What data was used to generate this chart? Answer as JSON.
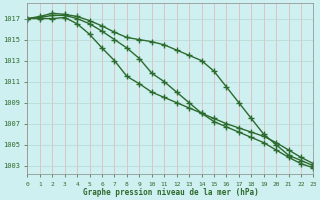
{
  "x": [
    0,
    1,
    2,
    3,
    4,
    5,
    6,
    7,
    8,
    9,
    10,
    11,
    12,
    13,
    14,
    15,
    16,
    17,
    18,
    19,
    20,
    21,
    22,
    23
  ],
  "series1": [
    1017.0,
    1017.2,
    1017.5,
    1017.4,
    1017.2,
    1016.8,
    1016.3,
    1015.7,
    1015.2,
    1015.0,
    1014.8,
    1014.5,
    1014.0,
    1013.5,
    1013.0,
    1012.0,
    1010.5,
    1009.0,
    1007.5,
    1006.0,
    1005.0,
    1004.0,
    1003.5,
    1003.0
  ],
  "series2": [
    1017.0,
    1017.1,
    1017.3,
    1017.3,
    1017.0,
    1016.5,
    1015.8,
    1015.0,
    1014.2,
    1013.2,
    1011.8,
    1011.0,
    1010.0,
    1009.0,
    1008.0,
    1007.2,
    1006.7,
    1006.2,
    1005.7,
    1005.2,
    1004.5,
    1003.8,
    1003.2,
    1002.8
  ],
  "series3": [
    1017.0,
    1017.0,
    1017.0,
    1017.1,
    1016.5,
    1015.5,
    1014.2,
    1013.0,
    1011.5,
    1010.8,
    1010.0,
    1009.5,
    1009.0,
    1008.5,
    1008.0,
    1007.5,
    1007.0,
    1006.6,
    1006.2,
    1005.8,
    1005.2,
    1004.5,
    1003.8,
    1003.2
  ],
  "yticks": [
    1003,
    1005,
    1007,
    1009,
    1011,
    1013,
    1015,
    1017
  ],
  "xticks": [
    0,
    1,
    2,
    3,
    4,
    5,
    6,
    7,
    8,
    9,
    10,
    11,
    12,
    13,
    14,
    15,
    16,
    17,
    18,
    19,
    20,
    21,
    22,
    23
  ],
  "xlabel": "Graphe pression niveau de la mer (hPa)",
  "ylim": [
    1002.2,
    1018.5
  ],
  "xlim": [
    0,
    23
  ],
  "line_color": "#2d6a2d",
  "bg_color": "#cff0f0",
  "grid_color_v": "#e8b0b0",
  "grid_color_h": "#b8d8d0"
}
